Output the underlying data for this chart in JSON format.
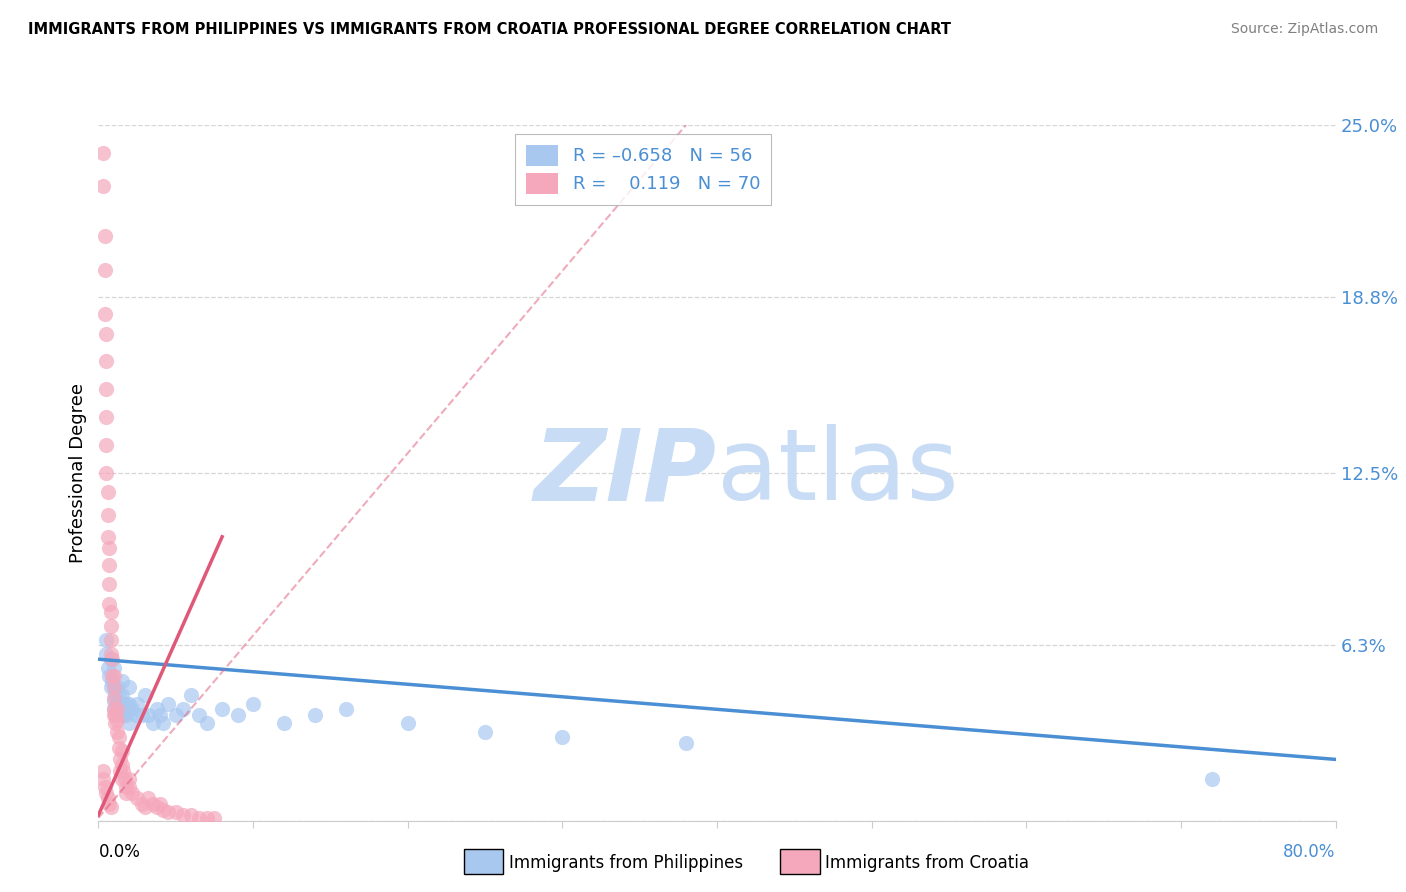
{
  "title": "IMMIGRANTS FROM PHILIPPINES VS IMMIGRANTS FROM CROATIA PROFESSIONAL DEGREE CORRELATION CHART",
  "source": "Source: ZipAtlas.com",
  "ylabel": "Professional Degree",
  "xlim": [
    0.0,
    0.8
  ],
  "ylim": [
    0.0,
    0.25
  ],
  "yticks": [
    0.0,
    0.063,
    0.125,
    0.188,
    0.25
  ],
  "ytick_labels": [
    "",
    "6.3%",
    "12.5%",
    "18.8%",
    "25.0%"
  ],
  "xtick_left_label": "0.0%",
  "xtick_right_label": "80.0%",
  "color_philippines": "#a8c8f0",
  "color_croatia": "#f5a8bc",
  "trend_color_philippines": "#4a8fd4",
  "trend_color_croatia": "#e05878",
  "watermark_zip": "ZIP",
  "watermark_atlas": "atlas",
  "watermark_color": "#c8ddf5",
  "background_color": "#ffffff",
  "grid_color": "#cccccc",
  "label_color": "#4a8fd4",
  "legend_text_color": "#4a8fd4",
  "philippines_x": [
    0.005,
    0.005,
    0.006,
    0.007,
    0.008,
    0.008,
    0.009,
    0.01,
    0.01,
    0.01,
    0.01,
    0.011,
    0.012,
    0.012,
    0.013,
    0.013,
    0.014,
    0.015,
    0.015,
    0.015,
    0.016,
    0.016,
    0.017,
    0.018,
    0.018,
    0.019,
    0.02,
    0.02,
    0.02,
    0.022,
    0.024,
    0.025,
    0.028,
    0.03,
    0.032,
    0.035,
    0.038,
    0.04,
    0.042,
    0.045,
    0.05,
    0.055,
    0.06,
    0.065,
    0.07,
    0.08,
    0.09,
    0.1,
    0.12,
    0.14,
    0.16,
    0.2,
    0.25,
    0.3,
    0.38,
    0.72
  ],
  "philippines_y": [
    0.065,
    0.06,
    0.055,
    0.052,
    0.058,
    0.048,
    0.05,
    0.055,
    0.048,
    0.043,
    0.04,
    0.045,
    0.048,
    0.042,
    0.045,
    0.04,
    0.042,
    0.05,
    0.045,
    0.038,
    0.042,
    0.038,
    0.04,
    0.042,
    0.038,
    0.04,
    0.048,
    0.042,
    0.035,
    0.04,
    0.038,
    0.042,
    0.038,
    0.045,
    0.038,
    0.035,
    0.04,
    0.038,
    0.035,
    0.042,
    0.038,
    0.04,
    0.045,
    0.038,
    0.035,
    0.04,
    0.038,
    0.042,
    0.035,
    0.038,
    0.04,
    0.035,
    0.032,
    0.03,
    0.028,
    0.015
  ],
  "croatia_x": [
    0.003,
    0.003,
    0.004,
    0.004,
    0.004,
    0.005,
    0.005,
    0.005,
    0.005,
    0.005,
    0.005,
    0.006,
    0.006,
    0.006,
    0.007,
    0.007,
    0.007,
    0.007,
    0.008,
    0.008,
    0.008,
    0.008,
    0.009,
    0.009,
    0.01,
    0.01,
    0.01,
    0.01,
    0.01,
    0.011,
    0.011,
    0.012,
    0.012,
    0.012,
    0.013,
    0.013,
    0.014,
    0.014,
    0.015,
    0.015,
    0.015,
    0.016,
    0.017,
    0.018,
    0.018,
    0.02,
    0.02,
    0.022,
    0.025,
    0.028,
    0.03,
    0.032,
    0.035,
    0.038,
    0.04,
    0.042,
    0.045,
    0.05,
    0.055,
    0.06,
    0.065,
    0.07,
    0.075,
    0.003,
    0.003,
    0.004,
    0.005,
    0.006,
    0.007,
    0.008
  ],
  "croatia_y": [
    0.24,
    0.228,
    0.21,
    0.198,
    0.182,
    0.175,
    0.165,
    0.155,
    0.145,
    0.135,
    0.125,
    0.118,
    0.11,
    0.102,
    0.098,
    0.092,
    0.085,
    0.078,
    0.075,
    0.07,
    0.065,
    0.06,
    0.058,
    0.052,
    0.052,
    0.048,
    0.044,
    0.04,
    0.038,
    0.038,
    0.035,
    0.04,
    0.036,
    0.032,
    0.03,
    0.026,
    0.022,
    0.018,
    0.025,
    0.02,
    0.015,
    0.018,
    0.015,
    0.012,
    0.01,
    0.015,
    0.012,
    0.01,
    0.008,
    0.006,
    0.005,
    0.008,
    0.006,
    0.005,
    0.006,
    0.004,
    0.003,
    0.003,
    0.002,
    0.002,
    0.001,
    0.001,
    0.001,
    0.018,
    0.015,
    0.012,
    0.01,
    0.008,
    0.006,
    0.005
  ],
  "trend_phil_x0": 0.0,
  "trend_phil_x1": 0.8,
  "trend_phil_y0": 0.058,
  "trend_phil_y1": 0.022,
  "trend_cro_x0": 0.0,
  "trend_cro_x1": 0.08,
  "trend_cro_y0": 0.002,
  "trend_cro_y1": 0.102,
  "trend_cro_dash_x0": 0.0,
  "trend_cro_dash_x1": 0.38,
  "trend_cro_dash_y0": 0.001,
  "trend_cro_dash_y1": 0.25
}
